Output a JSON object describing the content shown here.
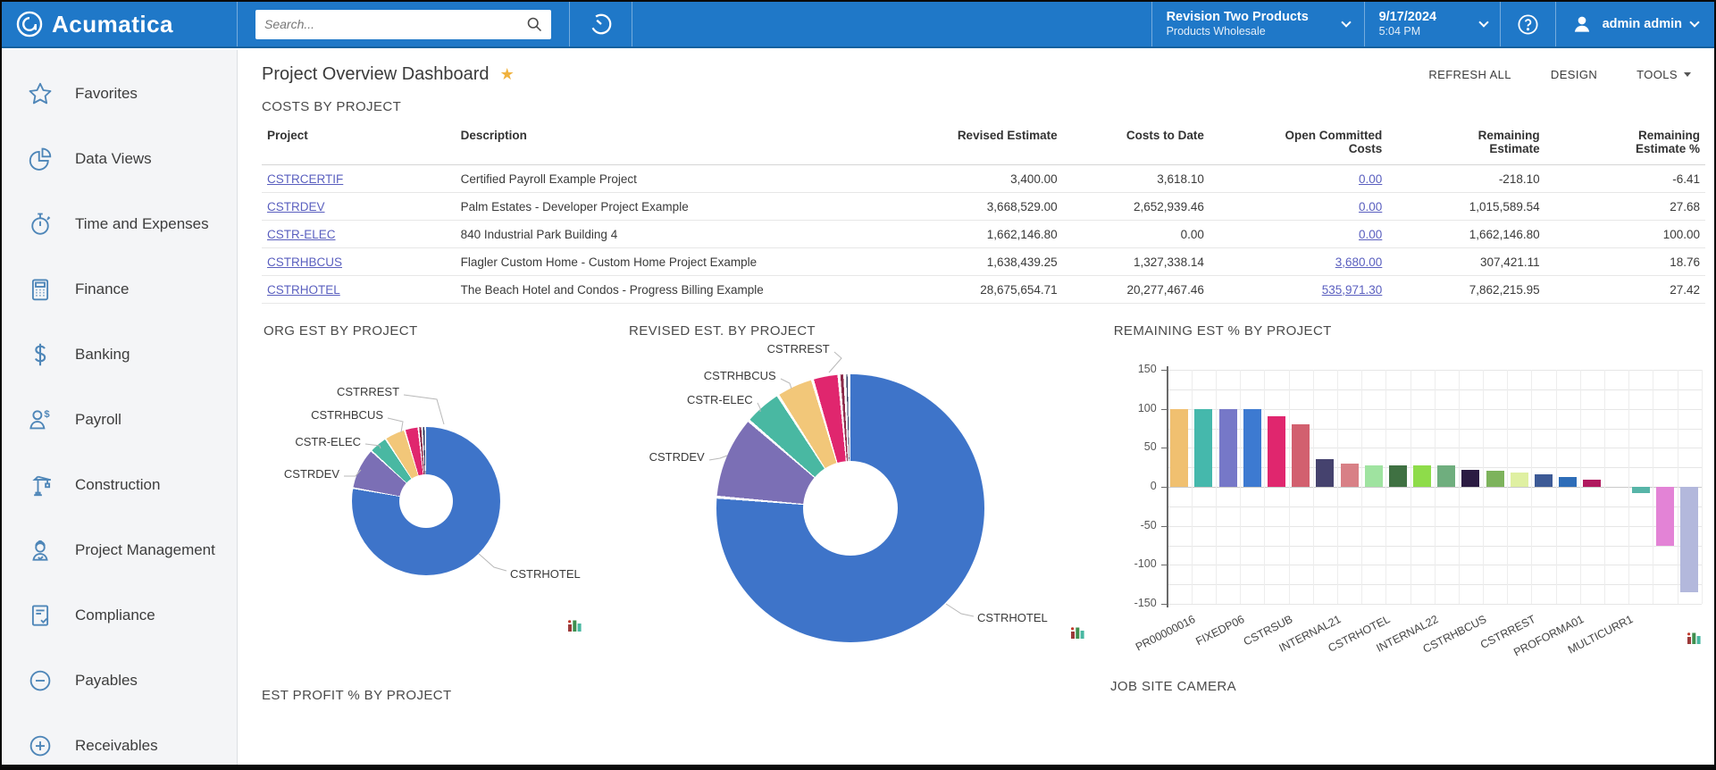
{
  "topbar": {
    "brand": "Acumatica",
    "search_placeholder": "Search...",
    "company": {
      "name": "Revision Two Products",
      "sub": "Products Wholesale"
    },
    "datetime": {
      "date": "9/17/2024",
      "time": "5:04 PM"
    },
    "user": "admin admin"
  },
  "sidebar": {
    "items": [
      {
        "label": "Favorites",
        "icon": "star-icon"
      },
      {
        "label": "Data Views",
        "icon": "pie-chart-icon"
      },
      {
        "label": "Time and Expenses",
        "icon": "stopwatch-icon"
      },
      {
        "label": "Finance",
        "icon": "calculator-icon"
      },
      {
        "label": "Banking",
        "icon": "dollar-icon"
      },
      {
        "label": "Payroll",
        "icon": "person-dollar-icon"
      },
      {
        "label": "Construction",
        "icon": "crane-icon"
      },
      {
        "label": "Project Management",
        "icon": "worker-icon"
      },
      {
        "label": "Compliance",
        "icon": "document-check-icon"
      },
      {
        "label": "Payables",
        "icon": "circle-minus-icon"
      },
      {
        "label": "Receivables",
        "icon": "circle-plus-icon"
      }
    ]
  },
  "header": {
    "title": "Project Overview Dashboard",
    "favorite_star": "★",
    "actions": {
      "refresh_all": "REFRESH ALL",
      "design": "DESIGN",
      "tools": "TOOLS"
    }
  },
  "costs_table": {
    "caption": "COSTS BY PROJECT",
    "columns": [
      "Project",
      "Description",
      "Revised Estimate",
      "Costs to Date",
      "Open Committed\nCosts",
      "Remaining\nEstimate",
      "Remaining\nEstimate %"
    ],
    "rows": [
      {
        "project": "CSTRCERTIF",
        "description": "Certified Payroll Example Project",
        "revised_estimate": "3,400.00",
        "costs_to_date": "3,618.10",
        "open_committed_costs": "0.00",
        "remaining_estimate": "-218.10",
        "remaining_estimate_pct": "-6.41"
      },
      {
        "project": "CSTRDEV",
        "description": "Palm Estates - Developer Project Example",
        "revised_estimate": "3,668,529.00",
        "costs_to_date": "2,652,939.46",
        "open_committed_costs": "0.00",
        "remaining_estimate": "1,015,589.54",
        "remaining_estimate_pct": "27.68"
      },
      {
        "project": "CSTR-ELEC",
        "description": "840 Industrial Park Building 4",
        "revised_estimate": "1,662,146.80",
        "costs_to_date": "0.00",
        "open_committed_costs": "0.00",
        "remaining_estimate": "1,662,146.80",
        "remaining_estimate_pct": "100.00"
      },
      {
        "project": "CSTRHBCUS",
        "description": "Flagler Custom Home - Custom Home Project Example",
        "revised_estimate": "1,638,439.25",
        "costs_to_date": "1,327,338.14",
        "open_committed_costs": "3,680.00",
        "remaining_estimate": "307,421.11",
        "remaining_estimate_pct": "18.76"
      },
      {
        "project": "CSTRHOTEL",
        "description": "The Beach Hotel and Condos - Progress Billing Example",
        "revised_estimate": "28,675,654.71",
        "costs_to_date": "20,277,467.46",
        "open_committed_costs": "535,971.30",
        "remaining_estimate": "7,862,215.95",
        "remaining_estimate_pct": "27.42"
      }
    ]
  },
  "chart_data": [
    {
      "type": "pie",
      "style": "donut",
      "title": "ORG EST BY PROJECT",
      "legend_position": "callouts",
      "series": [
        {
          "name": "CSTRHOTEL",
          "share_pct": 78,
          "color": "#3e74c9"
        },
        {
          "name": "CSTRDEV",
          "share_pct": 9,
          "color": "#7b6fb5"
        },
        {
          "name": "CSTR-ELEC",
          "share_pct": 4,
          "color": "#49b8a2"
        },
        {
          "name": "CSTRHBCUS",
          "share_pct": 4.5,
          "color": "#f2c779"
        },
        {
          "name": "CSTRREST",
          "share_pct": 3,
          "color": "#e0266e"
        },
        {
          "name": "",
          "share_pct": 0.8,
          "color": "#8b2a4a"
        },
        {
          "name": "",
          "share_pct": 0.7,
          "color": "#2f3a5f"
        }
      ]
    },
    {
      "type": "pie",
      "style": "donut",
      "title": "REVISED EST. BY PROJECT",
      "legend_position": "callouts",
      "series": [
        {
          "name": "CSTRHOTEL",
          "share_pct": 76.5,
          "color": "#3e74c9"
        },
        {
          "name": "CSTRDEV",
          "share_pct": 10,
          "color": "#7b6fb5"
        },
        {
          "name": "CSTR-ELEC",
          "share_pct": 4.6,
          "color": "#49b8a2"
        },
        {
          "name": "CSTRHBCUS",
          "share_pct": 4.5,
          "color": "#f2c779"
        },
        {
          "name": "CSTRREST",
          "share_pct": 3.2,
          "color": "#e0266e"
        },
        {
          "name": "",
          "share_pct": 0.7,
          "color": "#8b2a4a"
        },
        {
          "name": "",
          "share_pct": 0.5,
          "color": "#2f3a5f"
        }
      ]
    },
    {
      "type": "bar",
      "title": "REMAINING EST % BY PROJECT",
      "ylim": [
        -150,
        150
      ],
      "yticks": [
        150,
        100,
        50,
        0,
        -50,
        -100,
        -150
      ],
      "grid": true,
      "bars": [
        {
          "label": "PR00000016",
          "value": 100,
          "color": "#f0c070"
        },
        {
          "label": "",
          "value": 100,
          "color": "#45b8ac"
        },
        {
          "label": "FIXEDP06",
          "value": 100,
          "color": "#7678c8"
        },
        {
          "label": "",
          "value": 100,
          "color": "#3d7ad1"
        },
        {
          "label": "CSTRSUB",
          "value": 90,
          "color": "#e0266e"
        },
        {
          "label": "",
          "value": 80,
          "color": "#d2606f"
        },
        {
          "label": "INTERNAL21",
          "value": 36,
          "color": "#45426e"
        },
        {
          "label": "",
          "value": 30,
          "color": "#d88086"
        },
        {
          "label": "CSTRHOTEL",
          "value": 28,
          "color": "#9fe3a0"
        },
        {
          "label": "",
          "value": 27,
          "color": "#3f7142"
        },
        {
          "label": "INTERNAL22",
          "value": 27,
          "color": "#8edc4a"
        },
        {
          "label": "",
          "value": 27,
          "color": "#6fae7e"
        },
        {
          "label": "CSTRHBCUS",
          "value": 22,
          "color": "#2b1b42"
        },
        {
          "label": "",
          "value": 21,
          "color": "#7db35c"
        },
        {
          "label": "CSTRREST",
          "value": 18,
          "color": "#dff0a2"
        },
        {
          "label": "",
          "value": 16,
          "color": "#3d5a96"
        },
        {
          "label": "PROFORMA01",
          "value": 13,
          "color": "#2e6db8"
        },
        {
          "label": "",
          "value": 9,
          "color": "#b0195e"
        },
        {
          "label": "MULTICURR1",
          "value": 0,
          "color": "#cccccc"
        },
        {
          "label": "",
          "value": -8,
          "color": "#57b5a8"
        },
        {
          "label": "",
          "value": -75,
          "color": "#e383d6"
        },
        {
          "label": "",
          "value": -135,
          "color": "#b3b8dc"
        }
      ]
    }
  ],
  "bottom_widgets": {
    "est_profit_caption": "EST PROFIT % BY PROJECT",
    "job_site_caption": "JOB SITE CAMERA"
  },
  "colors": {
    "topbar_blue": "#1f78c8",
    "sidebar_bg": "#f4f5f7",
    "link": "#5a5fbf",
    "favorite_gold": "#f0b23e",
    "icon_blue": "#4e86b8"
  }
}
